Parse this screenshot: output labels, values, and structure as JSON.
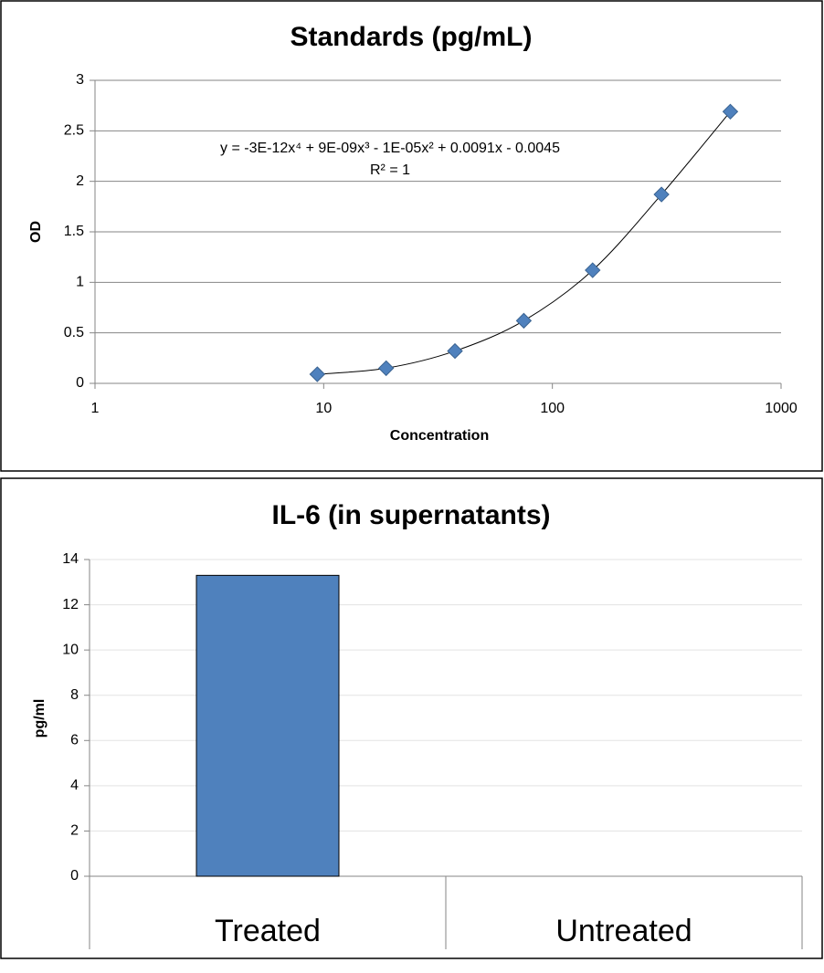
{
  "chart_data": [
    {
      "type": "scatter",
      "title": "Standards (pg/mL)",
      "x_label": "Concentration",
      "y_label": "OD",
      "x": [
        9.375,
        18.75,
        37.5,
        75,
        150,
        300,
        600
      ],
      "values": [
        0.09,
        0.15,
        0.32,
        0.62,
        1.12,
        1.87,
        2.69
      ],
      "color": "#4f81bd",
      "x_log": true,
      "xlim": [
        1,
        1000
      ],
      "xticks": [
        1,
        10,
        100,
        1000
      ],
      "ylim": [
        0,
        3
      ],
      "yticks": [
        0,
        0.5,
        1,
        1.5,
        2,
        2.5,
        3
      ],
      "grid": true,
      "trendline": true,
      "annotations": [
        "y = -3E-12x⁴ + 9E-09x³ - 1E-05x² + 0.0091x - 0.0045",
        "R² = 1"
      ]
    },
    {
      "type": "bar",
      "title": "IL-6 (in supernatants)",
      "y_label": "pg/ml",
      "categories": [
        "Treated",
        "Untreated"
      ],
      "values": [
        13.3,
        0
      ],
      "color": "#4f81bd",
      "ylim": [
        0,
        14
      ],
      "yticks": [
        0,
        2,
        4,
        6,
        8,
        10,
        12,
        14
      ],
      "grid": true
    }
  ]
}
